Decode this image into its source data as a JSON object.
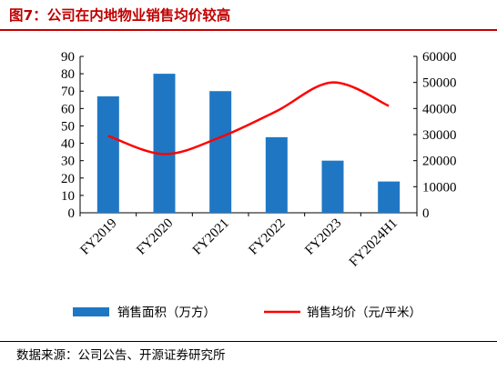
{
  "title": "图7：公司在内地物业销售均价较高",
  "source": "数据来源：公司公告、开源证券研究所",
  "chart_data": {
    "type": "bar",
    "categories": [
      "FY2019",
      "FY2020",
      "FY2021",
      "FY2022",
      "FY2023",
      "FY2024H1"
    ],
    "series": [
      {
        "name": "销售面积（万方）",
        "type": "bar",
        "axis": "left",
        "color": "#1f77c4",
        "values": [
          67,
          80,
          70,
          43.5,
          30,
          18
        ]
      },
      {
        "name": "销售均价（元/平米）",
        "type": "line",
        "axis": "right",
        "color": "#ff0000",
        "values": [
          29500,
          22500,
          29000,
          39000,
          50000,
          41000
        ]
      }
    ],
    "ylim_left": [
      0,
      90
    ],
    "yticks_left": [
      "0",
      "10",
      "20",
      "30",
      "40",
      "50",
      "60",
      "70",
      "80",
      "90"
    ],
    "ylim_right": [
      0,
      60000
    ],
    "yticks_right": [
      "0",
      "10000",
      "20000",
      "30000",
      "40000",
      "50000",
      "60000"
    ],
    "legend_position": "bottom",
    "grid": false
  }
}
